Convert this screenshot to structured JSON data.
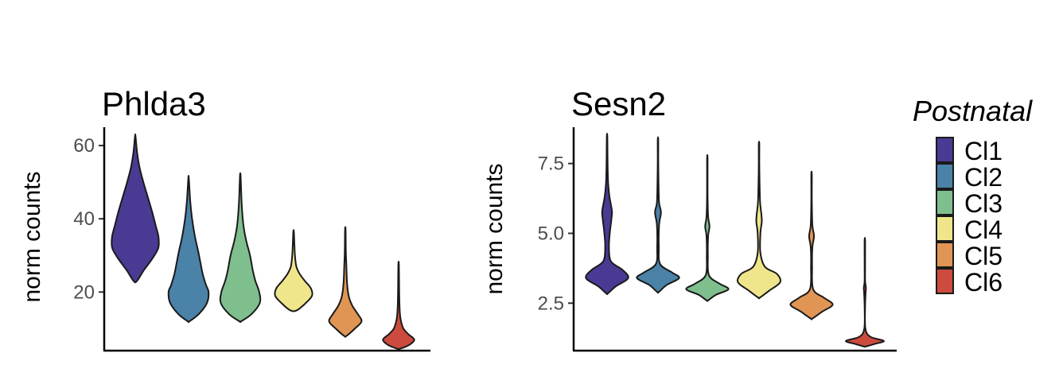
{
  "legend": {
    "title": "Postnatal",
    "items": [
      {
        "label": "Cl1",
        "color": "#4b3a93"
      },
      {
        "label": "Cl2",
        "color": "#4a82a8"
      },
      {
        "label": "Cl3",
        "color": "#7fbf8e"
      },
      {
        "label": "Cl4",
        "color": "#efe68b"
      },
      {
        "label": "Cl5",
        "color": "#e09554"
      },
      {
        "label": "Cl6",
        "color": "#cc4a3e"
      }
    ]
  },
  "chart_data": [
    {
      "type": "violin",
      "title": "Phlda3",
      "xlabel": "",
      "ylabel": "norm counts",
      "yticks": [
        20,
        40,
        60
      ],
      "ylim": [
        4,
        65
      ],
      "categories": [
        "Cl1",
        "Cl2",
        "Cl3",
        "Cl4",
        "Cl5",
        "Cl6"
      ],
      "groups": [
        {
          "name": "Cl1",
          "min": 23,
          "max": 62.5,
          "profile": [
            [
              23,
              0.06
            ],
            [
              26,
              0.32
            ],
            [
              29,
              0.62
            ],
            [
              32,
              0.85
            ],
            [
              35,
              0.86
            ],
            [
              38,
              0.76
            ],
            [
              42,
              0.62
            ],
            [
              46,
              0.46
            ],
            [
              50,
              0.3
            ],
            [
              54,
              0.16
            ],
            [
              58,
              0.07
            ],
            [
              62.5,
              0.01
            ]
          ]
        },
        {
          "name": "Cl2",
          "min": 12,
          "max": 51,
          "profile": [
            [
              12,
              0.03
            ],
            [
              14,
              0.38
            ],
            [
              17,
              0.68
            ],
            [
              20,
              0.74
            ],
            [
              22,
              0.64
            ],
            [
              25,
              0.52
            ],
            [
              28,
              0.44
            ],
            [
              31,
              0.36
            ],
            [
              35,
              0.24
            ],
            [
              40,
              0.13
            ],
            [
              45,
              0.06
            ],
            [
              51,
              0.01
            ]
          ]
        },
        {
          "name": "Cl3",
          "min": 12,
          "max": 52,
          "profile": [
            [
              12,
              0.03
            ],
            [
              14,
              0.42
            ],
            [
              17,
              0.72
            ],
            [
              20,
              0.7
            ],
            [
              23,
              0.56
            ],
            [
              26,
              0.46
            ],
            [
              30,
              0.36
            ],
            [
              34,
              0.22
            ],
            [
              38,
              0.12
            ],
            [
              43,
              0.06
            ],
            [
              48,
              0.03
            ],
            [
              52,
              0.01
            ]
          ]
        },
        {
          "name": "Cl4",
          "min": 15,
          "max": 36.5,
          "profile": [
            [
              15,
              0.12
            ],
            [
              17,
              0.45
            ],
            [
              19,
              0.68
            ],
            [
              21,
              0.64
            ],
            [
              23,
              0.42
            ],
            [
              25,
              0.22
            ],
            [
              27,
              0.1
            ],
            [
              30,
              0.05
            ],
            [
              33,
              0.03
            ],
            [
              36.5,
              0.01
            ]
          ]
        },
        {
          "name": "Cl5",
          "min": 8,
          "max": 37,
          "profile": [
            [
              8,
              0.04
            ],
            [
              10,
              0.35
            ],
            [
              12,
              0.6
            ],
            [
              14,
              0.46
            ],
            [
              16,
              0.28
            ],
            [
              18,
              0.16
            ],
            [
              20,
              0.1
            ],
            [
              23,
              0.06
            ],
            [
              27,
              0.04
            ],
            [
              31,
              0.02
            ],
            [
              37,
              0.01
            ]
          ]
        },
        {
          "name": "Cl6",
          "min": 4.5,
          "max": 27.5,
          "profile": [
            [
              4.5,
              0.04
            ],
            [
              5.5,
              0.38
            ],
            [
              7,
              0.58
            ],
            [
              8.5,
              0.36
            ],
            [
              10,
              0.18
            ],
            [
              12,
              0.09
            ],
            [
              14,
              0.05
            ],
            [
              17,
              0.03
            ],
            [
              21,
              0.02
            ],
            [
              27.5,
              0.01
            ]
          ]
        }
      ]
    },
    {
      "type": "violin",
      "title": "Sesn2",
      "xlabel": "",
      "ylabel": "norm counts",
      "yticks": [
        2.5,
        5.0,
        7.5
      ],
      "ytick_labels": [
        "2.5",
        "5.0",
        "7.5"
      ],
      "ylim": [
        0.8,
        8.8
      ],
      "categories": [
        "Cl1",
        "Cl2",
        "Cl3",
        "Cl4",
        "Cl5",
        "Cl6"
      ],
      "groups": [
        {
          "name": "Cl1",
          "min": 2.85,
          "max": 8.45,
          "profile": [
            [
              2.85,
              0.03
            ],
            [
              3.1,
              0.32
            ],
            [
              3.4,
              0.78
            ],
            [
              3.7,
              0.56
            ],
            [
              4.0,
              0.14
            ],
            [
              4.5,
              0.07
            ],
            [
              5.0,
              0.1
            ],
            [
              5.5,
              0.16
            ],
            [
              5.8,
              0.18
            ],
            [
              6.3,
              0.09
            ],
            [
              6.8,
              0.04
            ],
            [
              7.5,
              0.02
            ],
            [
              8.45,
              0.01
            ]
          ]
        },
        {
          "name": "Cl2",
          "min": 2.9,
          "max": 8.35,
          "profile": [
            [
              2.9,
              0.03
            ],
            [
              3.15,
              0.32
            ],
            [
              3.4,
              0.78
            ],
            [
              3.6,
              0.52
            ],
            [
              3.9,
              0.08
            ],
            [
              4.5,
              0.03
            ],
            [
              5.3,
              0.04
            ],
            [
              5.75,
              0.11
            ],
            [
              6.1,
              0.04
            ],
            [
              6.8,
              0.02
            ],
            [
              7.6,
              0.01
            ],
            [
              8.35,
              0.01
            ]
          ]
        },
        {
          "name": "Cl3",
          "min": 2.6,
          "max": 7.65,
          "profile": [
            [
              2.6,
              0.03
            ],
            [
              2.8,
              0.32
            ],
            [
              3.0,
              0.78
            ],
            [
              3.2,
              0.45
            ],
            [
              3.5,
              0.06
            ],
            [
              4.2,
              0.02
            ],
            [
              4.9,
              0.03
            ],
            [
              5.25,
              0.08
            ],
            [
              5.6,
              0.03
            ],
            [
              6.4,
              0.01
            ],
            [
              7.65,
              0.01
            ]
          ]
        },
        {
          "name": "Cl4",
          "min": 2.7,
          "max": 8.2,
          "profile": [
            [
              2.7,
              0.03
            ],
            [
              2.95,
              0.38
            ],
            [
              3.25,
              0.78
            ],
            [
              3.55,
              0.66
            ],
            [
              3.8,
              0.22
            ],
            [
              4.3,
              0.05
            ],
            [
              5.0,
              0.05
            ],
            [
              5.4,
              0.1
            ],
            [
              5.65,
              0.09
            ],
            [
              6.1,
              0.04
            ],
            [
              6.8,
              0.02
            ],
            [
              7.5,
              0.01
            ],
            [
              8.2,
              0.01
            ]
          ]
        },
        {
          "name": "Cl5",
          "min": 1.95,
          "max": 7.1,
          "profile": [
            [
              1.95,
              0.03
            ],
            [
              2.2,
              0.4
            ],
            [
              2.45,
              0.78
            ],
            [
              2.7,
              0.45
            ],
            [
              3.0,
              0.06
            ],
            [
              3.8,
              0.02
            ],
            [
              4.5,
              0.03
            ],
            [
              4.9,
              0.09
            ],
            [
              5.3,
              0.03
            ],
            [
              6.2,
              0.01
            ],
            [
              7.1,
              0.01
            ]
          ]
        },
        {
          "name": "Cl6",
          "min": 0.95,
          "max": 4.75,
          "profile": [
            [
              0.95,
              0.04
            ],
            [
              1.05,
              0.4
            ],
            [
              1.15,
              0.7
            ],
            [
              1.3,
              0.2
            ],
            [
              1.6,
              0.02
            ],
            [
              2.4,
              0.01
            ],
            [
              2.9,
              0.03
            ],
            [
              3.05,
              0.04
            ],
            [
              3.3,
              0.01
            ],
            [
              4.0,
              0.01
            ],
            [
              4.75,
              0.01
            ]
          ]
        }
      ]
    }
  ]
}
